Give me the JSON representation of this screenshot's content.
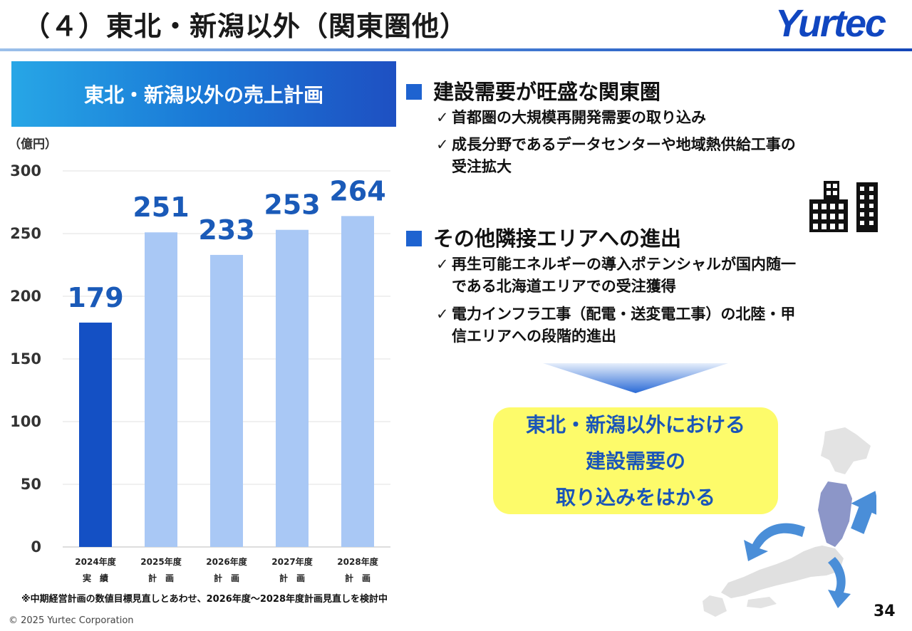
{
  "header": {
    "title": "（４）東北・新潟以外（関東圏他）",
    "logo": "Yurtec"
  },
  "chart_panel": {
    "banner": "東北・新潟以外の売上計画",
    "unit": "（億円）",
    "footnote": "※中期経営計画の数値目標見直しとあわせ、2026年度～2028年度計画見直しを検討中"
  },
  "chart_data": {
    "type": "bar",
    "title": "東北・新潟以外の売上計画",
    "ylabel": "（億円）",
    "categories": [
      "2024年度",
      "2025年度",
      "2026年度",
      "2027年度",
      "2028年度"
    ],
    "category_sublabels": [
      "実　績",
      "計　画",
      "計　画",
      "計　画",
      "計　画"
    ],
    "values": [
      179,
      251,
      233,
      253,
      264
    ],
    "data_labels": [
      "179",
      "251",
      "233",
      "253",
      "264"
    ],
    "ylim": [
      0,
      300
    ],
    "yticks": [
      0,
      50,
      100,
      150,
      200,
      250,
      300
    ],
    "bar_colors": [
      "#1450c4",
      "#a9c8f5",
      "#a9c8f5",
      "#a9c8f5",
      "#a9c8f5"
    ],
    "label_color": "#1a5ab8",
    "grid": true,
    "legend": "none"
  },
  "right": {
    "sections": [
      {
        "heading": "建設需要が旺盛な関東圏",
        "bullets": [
          [
            "首都圏の大規模再開発需要の取り込み"
          ],
          [
            "成長分野であるデータセンターや地域熱供給工事の",
            "受注拡大"
          ]
        ]
      },
      {
        "heading": "その他隣接エリアへの進出",
        "bullets": [
          [
            "再生可能エネルギーの導入ポテンシャルが国内随一",
            "である北海道エリアでの受注獲得"
          ],
          [
            "電力インフラ工事（配電・送変電工事）の北陸・甲",
            "信エリアへの段階的進出"
          ]
        ]
      }
    ],
    "check_mark": "✓",
    "callout": [
      "東北・新潟以外における",
      "建設需要の",
      "取り込みをはかる"
    ]
  },
  "icons": {
    "buildings": "buildings-icon",
    "map": "japan-map-icon"
  },
  "colors": {
    "accent": "#1e63d0",
    "callout_bg": "#fdfb6a",
    "callout_text": "#1a55b8"
  },
  "footer": {
    "copyright": "© 2025 Yurtec Corporation",
    "page": "34"
  }
}
